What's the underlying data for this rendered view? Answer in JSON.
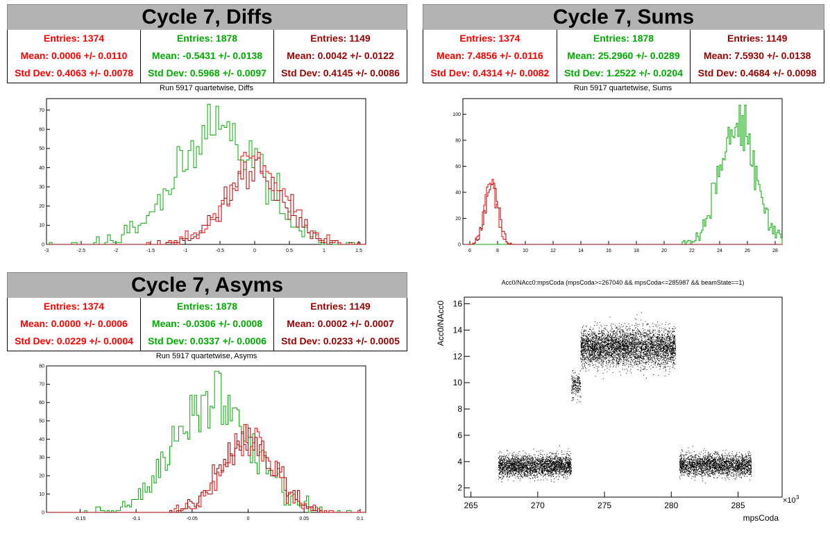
{
  "colors": {
    "red": "#ff0000",
    "green": "#00aa00",
    "darkred": "#990000",
    "titlebar": "#b3b3b3"
  },
  "panels": {
    "diffs": {
      "title": "Cycle 7, Diffs",
      "stats": [
        {
          "entries": "Entries: 1374",
          "mean": "Mean: 0.0006 +/- 0.0110",
          "std": "Std Dev: 0.4063 +/- 0.0078",
          "color": "#ff0000"
        },
        {
          "entries": "Entries: 1878",
          "mean": "Mean: -0.5431 +/- 0.0138",
          "std": "Std Dev: 0.5968 +/- 0.0097",
          "color": "#00aa00"
        },
        {
          "entries": "Entries: 1149",
          "mean": "Mean: 0.0042 +/- 0.0122",
          "std": "Std Dev: 0.4145 +/- 0.0086",
          "color": "#990000"
        }
      ],
      "subtitle": "Run 5917 quartetwise, Diffs"
    },
    "sums": {
      "title": "Cycle 7, Sums",
      "stats": [
        {
          "entries": "Entries: 1374",
          "mean": "Mean: 7.4856 +/- 0.0116",
          "std": "Std Dev: 0.4314 +/- 0.0082",
          "color": "#ff0000"
        },
        {
          "entries": "Entries: 1878",
          "mean": "Mean: 25.2960 +/- 0.0289",
          "std": "Std Dev: 1.2522 +/- 0.0204",
          "color": "#00aa00"
        },
        {
          "entries": "Entries: 1149",
          "mean": "Mean: 7.5930 +/- 0.0138",
          "std": "Std Dev: 0.4684 +/- 0.0098",
          "color": "#990000"
        }
      ],
      "subtitle": "Run 5917 quartetwise, Sums"
    },
    "asyms": {
      "title": "Cycle 7, Asyms",
      "stats": [
        {
          "entries": "Entries: 1374",
          "mean": "Mean: 0.0000 +/- 0.0006",
          "std": "Std Dev: 0.0229 +/- 0.0004",
          "color": "#ff0000"
        },
        {
          "entries": "Entries: 1878",
          "mean": "Mean: -0.0306 +/- 0.0008",
          "std": "Std Dev: 0.0337 +/- 0.0006",
          "color": "#00aa00"
        },
        {
          "entries": "Entries: 1149",
          "mean": "Mean: 0.0002 +/- 0.0007",
          "std": "Std Dev: 0.0233 +/- 0.0005",
          "color": "#990000"
        }
      ],
      "subtitle": "Run 5917 quartetwise, Asyms"
    },
    "scatter": {
      "title": "Acc0/NAcc0:mpsCoda (mpsCoda>=267040 && mpsCoda<=285987 && beamState==1)"
    }
  },
  "chart_data": [
    {
      "id": "diffs",
      "type": "histogram",
      "xlim": [
        -3,
        1.6
      ],
      "ylim": [
        0,
        76
      ],
      "xticks": [
        -3,
        -2.5,
        -2,
        -1.5,
        -1,
        -0.5,
        0,
        0.5,
        1,
        1.5
      ],
      "xtick_labels": [
        "-3",
        "-2.5",
        "-2",
        "-1.5",
        "-1",
        "-0.5",
        "0",
        "0.5",
        "1",
        "1.5"
      ],
      "yticks": [
        0,
        10,
        20,
        30,
        40,
        50,
        60,
        70
      ],
      "ytick_labels": [
        "0",
        "10",
        "20",
        "30",
        "40",
        "50",
        "60",
        "70"
      ],
      "series": [
        {
          "color": "#00aa00",
          "mean": -0.5431,
          "std": 0.5968,
          "entries": 1878,
          "peak": 73,
          "binwidth": 0.04
        },
        {
          "color": "#ff0000",
          "mean": 0.0006,
          "std": 0.4063,
          "entries": 1374,
          "peak": 48,
          "binwidth": 0.04
        },
        {
          "color": "#990000",
          "mean": 0.0042,
          "std": 0.4145,
          "entries": 1149,
          "peak": 45,
          "binwidth": 0.04
        }
      ]
    },
    {
      "id": "sums",
      "type": "histogram",
      "xlim": [
        5.5,
        28.5
      ],
      "ylim": [
        0,
        112
      ],
      "xticks": [
        6,
        8,
        10,
        12,
        14,
        16,
        18,
        20,
        22,
        24,
        26,
        28
      ],
      "xtick_labels": [
        "6",
        "8",
        "10",
        "12",
        "14",
        "16",
        "18",
        "20",
        "22",
        "24",
        "26",
        "28"
      ],
      "yticks": [
        0,
        20,
        40,
        60,
        80,
        100
      ],
      "ytick_labels": [
        "0",
        "20",
        "40",
        "60",
        "80",
        "100"
      ],
      "series": [
        {
          "color": "#00aa00",
          "mean": 25.296,
          "std": 1.2522,
          "entries": 1878,
          "peak": 107,
          "binwidth": 0.1
        },
        {
          "color": "#ff0000",
          "mean": 7.4856,
          "std": 0.4314,
          "entries": 1374,
          "peak": 50,
          "binwidth": 0.1
        },
        {
          "color": "#990000",
          "mean": 7.593,
          "std": 0.4684,
          "entries": 1149,
          "peak": 47,
          "binwidth": 0.1
        }
      ]
    },
    {
      "id": "asyms",
      "type": "histogram",
      "xlim": [
        -0.18,
        0.105
      ],
      "ylim": [
        0,
        80
      ],
      "xticks": [
        -0.15,
        -0.1,
        -0.05,
        0,
        0.05,
        0.1
      ],
      "xtick_labels": [
        "-0.15",
        "-0.1",
        "-0.05",
        "0",
        "0.05",
        "0.1"
      ],
      "yticks": [
        0,
        10,
        20,
        30,
        40,
        50,
        60,
        70,
        80
      ],
      "ytick_labels": [
        "0",
        "10",
        "20",
        "30",
        "40",
        "50",
        "60",
        "70",
        "80"
      ],
      "series": [
        {
          "color": "#00aa00",
          "mean": -0.0306,
          "std": 0.0337,
          "entries": 1878,
          "peak": 77,
          "binwidth": 0.002
        },
        {
          "color": "#ff0000",
          "mean": 0.0,
          "std": 0.0229,
          "entries": 1374,
          "peak": 48,
          "binwidth": 0.002
        },
        {
          "color": "#990000",
          "mean": 0.0002,
          "std": 0.0233,
          "entries": 1149,
          "peak": 46,
          "binwidth": 0.002
        }
      ]
    },
    {
      "id": "scatter",
      "type": "scatter",
      "xlabel": "mpsCoda",
      "ylabel": "Acc0/NAcc0",
      "x_multiplier_label": "×10",
      "x_multiplier_exp": "3",
      "xlim": [
        264.5,
        288.3
      ],
      "ylim": [
        1.3,
        16.5
      ],
      "xticks": [
        265,
        270,
        275,
        280,
        285
      ],
      "xtick_labels": [
        "265",
        "270",
        "275",
        "280",
        "285"
      ],
      "yticks": [
        2,
        4,
        6,
        8,
        10,
        12,
        14,
        16
      ],
      "ytick_labels": [
        "2",
        "4",
        "6",
        "8",
        "10",
        "12",
        "14",
        "16"
      ],
      "clusters": [
        {
          "x": [
            267.04,
            272.5
          ],
          "y_center": 3.7,
          "y_spread": 0.4,
          "count": 2600
        },
        {
          "x": [
            272.5,
            273.2
          ],
          "y_center": 9.8,
          "y_spread": 0.5,
          "count": 200
        },
        {
          "x": [
            273.2,
            280.3
          ],
          "y_center": 12.7,
          "y_spread": 0.7,
          "count": 4200
        },
        {
          "x": [
            280.6,
            285.99
          ],
          "y_center": 3.75,
          "y_spread": 0.4,
          "count": 2400
        }
      ],
      "point_color": "#000000"
    }
  ]
}
